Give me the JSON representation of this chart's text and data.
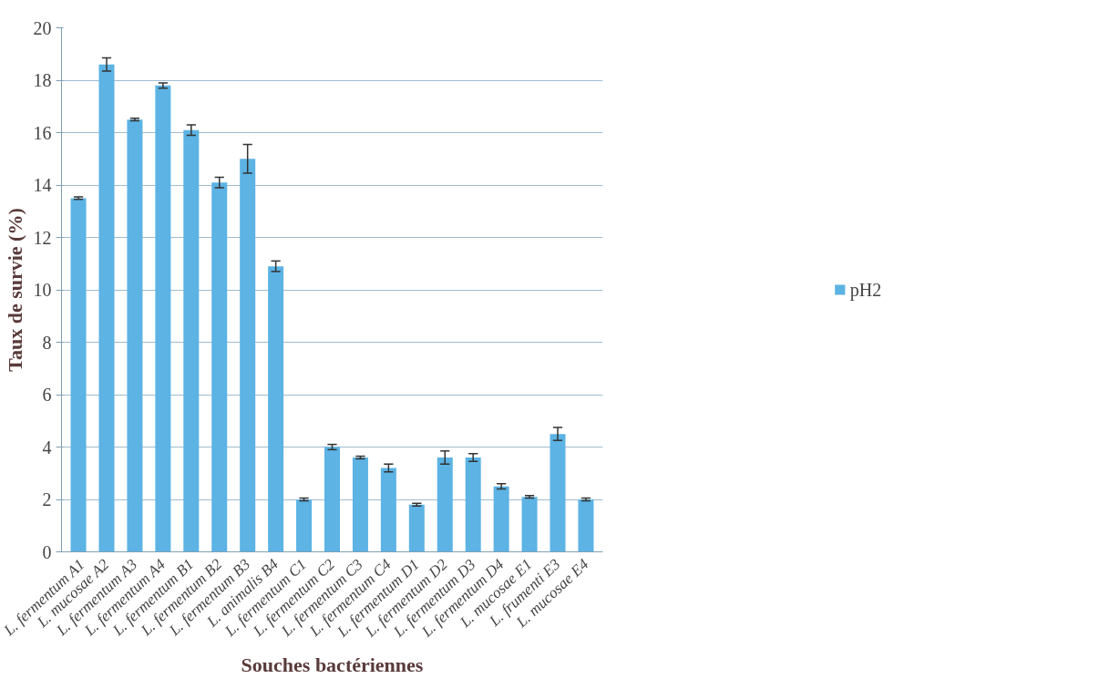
{
  "chart_data": {
    "type": "bar",
    "xlabel": "Souches bactériennes",
    "ylabel": "Taux de survie (%)",
    "categories": [
      "L. fermentum A1",
      "L. mucosae A2",
      "L. fermentum A3",
      "L. fermentum A4",
      "L. fermentum B1",
      "L. fermentum B2",
      "L. fermentum B3",
      "L. animalis B4",
      "L. fermentum C1",
      "L. fermentum C2",
      "L. fermentum C3",
      "L. fermentum C4",
      "L. fermentum D1",
      "L. fermentum D2",
      "L. fermentum D3",
      "L. fermentum D4",
      "L. mucosae E1",
      "L. frumenti E3",
      "L. mucosae E4"
    ],
    "series": [
      {
        "name": "pH2",
        "color": "#5cb3e4",
        "values": [
          13.5,
          18.6,
          16.5,
          17.8,
          16.1,
          14.1,
          15.0,
          10.9,
          2.0,
          4.0,
          3.6,
          3.2,
          1.8,
          3.6,
          3.6,
          2.5,
          2.1,
          4.5,
          2.0
        ],
        "errors": [
          0.05,
          0.25,
          0.05,
          0.1,
          0.2,
          0.2,
          0.55,
          0.2,
          0.05,
          0.1,
          0.05,
          0.15,
          0.05,
          0.25,
          0.15,
          0.1,
          0.05,
          0.25,
          0.05
        ]
      }
    ],
    "ylim": [
      0,
      20
    ],
    "yticks": [
      0,
      2,
      4,
      6,
      8,
      10,
      12,
      14,
      16,
      18,
      20
    ],
    "grid": "y",
    "legend": "right"
  }
}
